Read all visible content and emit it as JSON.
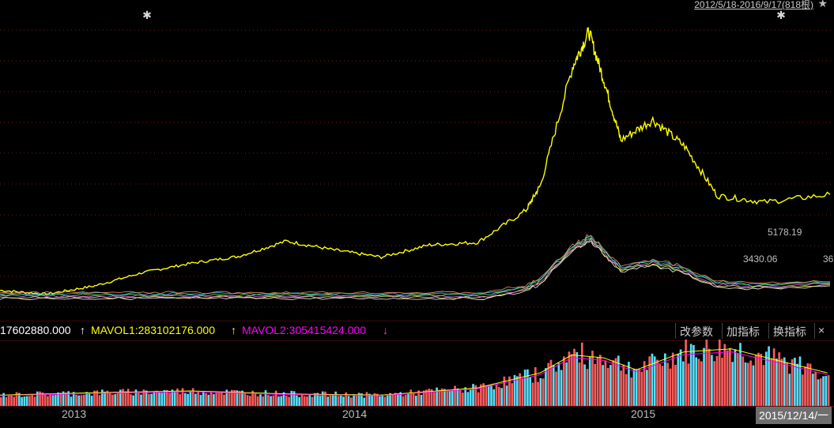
{
  "header": {
    "range_label": "2012/5/18-2016/9/17(818根)",
    "star_icon": "star-icon",
    "marker_icon": "diamond-marker-icon"
  },
  "indicator_bar": {
    "vol_value": "17602880.000",
    "vol_arrow": "↑",
    "mavol1": "MAVOL1:283102176.000",
    "mavol1_arrow": "↑",
    "mavol2": "MAVOL2:305415424.000",
    "mavol2_arrow": "↓",
    "buttons": [
      "改参数",
      "加指标",
      "换指标"
    ],
    "close_icon": "×",
    "colors": {
      "vol": "#ffffff",
      "mavol1": "#ffff00",
      "mavol2": "#ff00ff",
      "up_arrow": "#ffffff",
      "down_arrow": "#ff33cc"
    }
  },
  "price_labels": {
    "high": "5178.19",
    "low": "3430.06",
    "extra": "36"
  },
  "x_axis": {
    "ticks": [
      "2013",
      "2014",
      "2015"
    ],
    "cursor_date": "2015/12/14/一"
  },
  "chart_data": [
    {
      "type": "line",
      "series": [
        {
          "color": "#ffff00",
          "x": [
            "2012-05-18",
            "2012-08",
            "2012-11",
            "2013-02",
            "2013-05",
            "2013-08",
            "2013-11",
            "2014-02",
            "2014-05",
            "2014-08",
            "2014-11",
            "2015-02",
            "2015-03",
            "2015-05",
            "2015-06",
            "2015-07",
            "2015-08",
            "2015-10",
            "2015-12",
            "2016-02",
            "2016-05",
            "2016-09-17"
          ],
          "values": [
            400,
            340,
            470,
            680,
            820,
            930,
            1170,
            1030,
            920,
            1110,
            1150,
            1650,
            2050,
            3900,
            4450,
            3650,
            2750,
            3070,
            2650,
            1880,
            1780,
            1900
          ]
        }
      ],
      "overlay_price_range": {
        "high": 5178.19,
        "low": 3430.06
      },
      "grid": true
    },
    {
      "type": "bar",
      "indicator": "VOL",
      "series": [
        {
          "name": "MAVOL1",
          "color": "#ffff00"
        },
        {
          "name": "MAVOL2",
          "color": "#ff00ff"
        }
      ],
      "x": [
        "2012-05",
        "2012-11",
        "2013-05",
        "2013-11",
        "2014-05",
        "2014-11",
        "2015-03",
        "2015-05",
        "2015-07",
        "2015-09",
        "2015-12",
        "2016-03",
        "2016-06",
        "2016-09"
      ],
      "values": [
        0.18,
        0.22,
        0.25,
        0.2,
        0.18,
        0.3,
        0.55,
        0.85,
        0.8,
        0.6,
        0.9,
        0.95,
        0.75,
        0.55
      ],
      "up_color": "#ff5a5a",
      "down_color": "#54e0ff"
    }
  ]
}
